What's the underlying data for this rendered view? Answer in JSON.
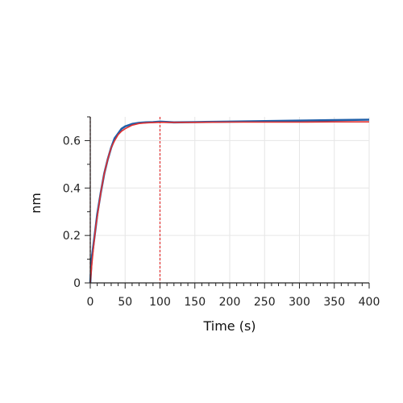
{
  "chart_data": {
    "type": "line",
    "title": "",
    "xlabel": "Time (s)",
    "ylabel": "nm",
    "xlim": [
      0,
      400
    ],
    "ylim": [
      0,
      0.7
    ],
    "x_ticks": [
      0,
      50,
      100,
      150,
      200,
      250,
      300,
      350,
      400
    ],
    "x_tick_labels": [
      "0",
      "50",
      "100",
      "150",
      "200",
      "250",
      "300",
      "350",
      "400"
    ],
    "y_ticks": [
      0,
      0.2,
      0.4,
      0.6
    ],
    "y_tick_labels": [
      "0",
      "0.2",
      "0.4",
      "0.6"
    ],
    "grid": true,
    "legend": "none",
    "colors": {
      "measured": "#1f5fa8",
      "fit": "#e03030",
      "grid": "#e6e6e6",
      "axis": "#222222"
    },
    "series": [
      {
        "role": "measured",
        "x": [
          0,
          2,
          5,
          8,
          10,
          15,
          20,
          25,
          30,
          35,
          40,
          45,
          50,
          60,
          70,
          80,
          90,
          100,
          120,
          150,
          200,
          250,
          300,
          350,
          400
        ],
        "y": [
          0.0,
          0.1,
          0.17,
          0.24,
          0.29,
          0.38,
          0.46,
          0.52,
          0.57,
          0.61,
          0.63,
          0.65,
          0.66,
          0.67,
          0.675,
          0.677,
          0.678,
          0.68,
          0.677,
          0.678,
          0.68,
          0.682,
          0.684,
          0.686,
          0.688
        ]
      },
      {
        "role": "fit",
        "x": [
          0,
          2,
          5,
          8,
          10,
          15,
          20,
          25,
          30,
          35,
          40,
          45,
          50,
          60,
          70,
          80,
          90,
          100,
          120,
          150,
          200,
          250,
          300,
          350,
          400
        ],
        "y": [
          0.0,
          0.07,
          0.16,
          0.24,
          0.28,
          0.38,
          0.46,
          0.52,
          0.57,
          0.6,
          0.625,
          0.64,
          0.65,
          0.665,
          0.672,
          0.675,
          0.676,
          0.677,
          0.677,
          0.677,
          0.678,
          0.678,
          0.678,
          0.679,
          0.679
        ]
      }
    ],
    "vertical_markers": [
      {
        "x": 0,
        "color": "#8a0000",
        "style": "dashed"
      },
      {
        "x": 100,
        "color": "#e03030",
        "style": "dashed"
      }
    ]
  }
}
